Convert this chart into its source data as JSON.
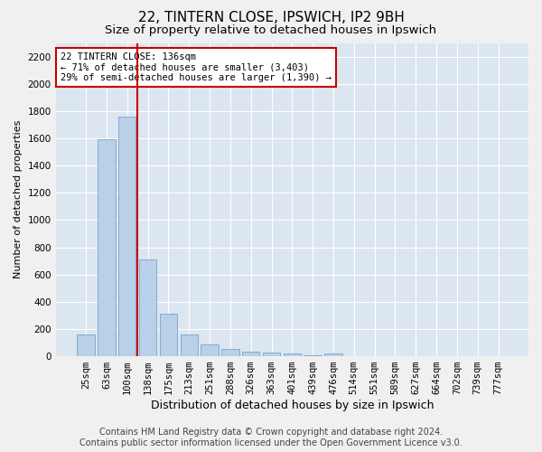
{
  "title1": "22, TINTERN CLOSE, IPSWICH, IP2 9BH",
  "title2": "Size of property relative to detached houses in Ipswich",
  "xlabel": "Distribution of detached houses by size in Ipswich",
  "ylabel": "Number of detached properties",
  "categories": [
    "25sqm",
    "63sqm",
    "100sqm",
    "138sqm",
    "175sqm",
    "213sqm",
    "251sqm",
    "288sqm",
    "326sqm",
    "363sqm",
    "401sqm",
    "439sqm",
    "476sqm",
    "514sqm",
    "551sqm",
    "589sqm",
    "627sqm",
    "664sqm",
    "702sqm",
    "739sqm",
    "777sqm"
  ],
  "values": [
    160,
    1590,
    1760,
    710,
    315,
    160,
    90,
    55,
    35,
    25,
    20,
    10,
    20,
    0,
    0,
    0,
    0,
    0,
    0,
    0,
    0
  ],
  "bar_color": "#b8d0e8",
  "bar_edge_color": "#6699cc",
  "vline_color": "#cc0000",
  "annotation_text": "22 TINTERN CLOSE: 136sqm\n← 71% of detached houses are smaller (3,403)\n29% of semi-detached houses are larger (1,390) →",
  "annotation_box_color": "#ffffff",
  "annotation_box_edge": "#cc0000",
  "ylim": [
    0,
    2300
  ],
  "yticks": [
    0,
    200,
    400,
    600,
    800,
    1000,
    1200,
    1400,
    1600,
    1800,
    2000,
    2200
  ],
  "background_color": "#dce6f0",
  "fig_background": "#f0f0f0",
  "footer1": "Contains HM Land Registry data © Crown copyright and database right 2024.",
  "footer2": "Contains public sector information licensed under the Open Government Licence v3.0.",
  "title1_fontsize": 11,
  "title2_fontsize": 9.5,
  "xlabel_fontsize": 9,
  "ylabel_fontsize": 8,
  "tick_fontsize": 7.5,
  "annot_fontsize": 7.5,
  "footer_fontsize": 7
}
